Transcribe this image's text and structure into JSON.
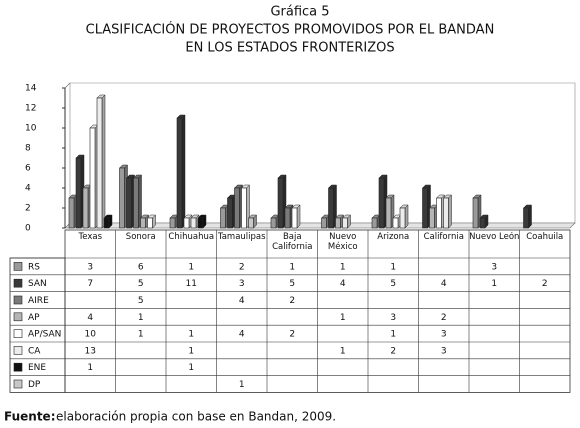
{
  "chart_data": {
    "type": "bar",
    "title": "Gráfica 5",
    "subtitle": [
      "CLASIFICACIÓN DE PROYECTOS PROMOVIDOS POR EL BANDAN",
      "EN LOS ESTADOS FRONTERIZOS"
    ],
    "categories": [
      "Texas",
      "Sonora",
      "Chihuahua",
      "Tamaulipas",
      "Baja California",
      "Nuevo México",
      "Arizona",
      "California",
      "Nuevo León",
      "Coahuila"
    ],
    "series": [
      {
        "name": "RS",
        "color": "#9a9a9a",
        "values": [
          3,
          6,
          1,
          2,
          1,
          1,
          1,
          null,
          3,
          null
        ]
      },
      {
        "name": "SAN",
        "color": "#3a3a3a",
        "values": [
          7,
          5,
          11,
          3,
          5,
          4,
          5,
          4,
          1,
          2
        ]
      },
      {
        "name": "AIRE",
        "color": "#7a7a7a",
        "values": [
          null,
          5,
          null,
          4,
          2,
          null,
          null,
          null,
          null,
          null
        ]
      },
      {
        "name": "AP",
        "color": "#b5b5b5",
        "values": [
          4,
          1,
          null,
          null,
          null,
          1,
          3,
          2,
          null,
          null
        ]
      },
      {
        "name": "AP/SAN",
        "color": "#ffffff",
        "values": [
          10,
          1,
          1,
          4,
          2,
          null,
          1,
          3,
          null,
          null
        ]
      },
      {
        "name": "CA",
        "color": "#ececec",
        "values": [
          13,
          null,
          1,
          null,
          null,
          1,
          2,
          3,
          null,
          null
        ]
      },
      {
        "name": "ENE",
        "color": "#111111",
        "values": [
          1,
          null,
          1,
          null,
          null,
          null,
          null,
          null,
          null,
          null
        ]
      },
      {
        "name": "DP",
        "color": "#c8c8c8",
        "values": [
          null,
          null,
          null,
          1,
          null,
          null,
          null,
          null,
          null,
          null
        ]
      }
    ],
    "ylim": [
      0,
      14
    ],
    "yticks": [
      0,
      2,
      4,
      6,
      8,
      10,
      12,
      14
    ],
    "source_label": "Fuente:",
    "source": "elaboración propia con base en Bandan, 2009."
  }
}
